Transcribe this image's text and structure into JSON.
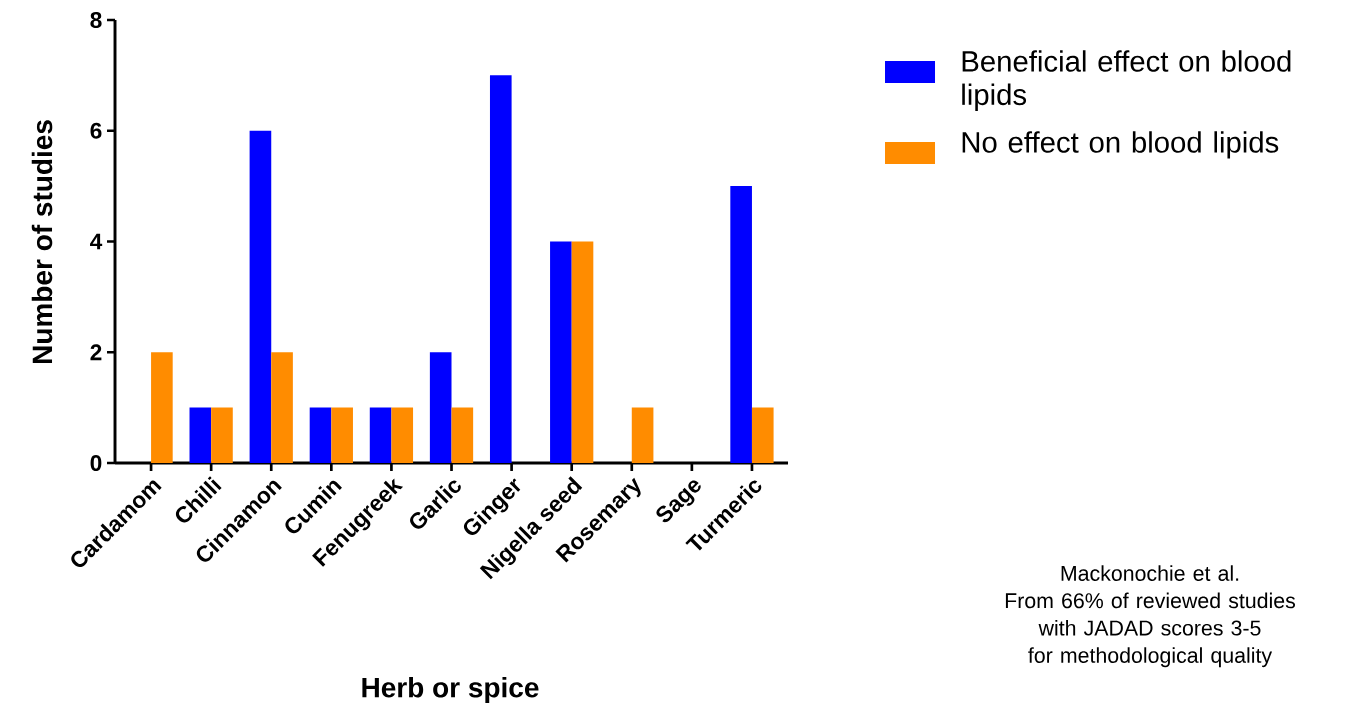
{
  "chart_data": {
    "type": "bar",
    "xlabel": "Herb or spice",
    "ylabel": "Number of studies",
    "categories": [
      "Cardamom",
      "Chilli",
      "Cinnamon",
      "Cumin",
      "Fenugreek",
      "Garlic",
      "Ginger",
      "Nigella seed",
      "Rosemary",
      "Sage",
      "Turmeric"
    ],
    "series": [
      {
        "name": "Beneficial effect on blood lipids",
        "color": "#0000ff",
        "values": [
          0,
          1,
          6,
          1,
          1,
          2,
          7,
          4,
          0,
          0,
          5
        ]
      },
      {
        "name": "No effect on blood lipids",
        "color": "#ff8c00",
        "values": [
          2,
          1,
          2,
          1,
          1,
          1,
          0,
          4,
          1,
          0,
          1
        ]
      }
    ],
    "ylim": [
      0,
      8
    ],
    "yticks": [
      0,
      2,
      4,
      6,
      8
    ],
    "grid": false,
    "legend": "top right",
    "annotations": [
      "Mackonochie et al.",
      "From 66% of reviewed studies with JADAD scores 3-5 for methodological quality"
    ]
  }
}
